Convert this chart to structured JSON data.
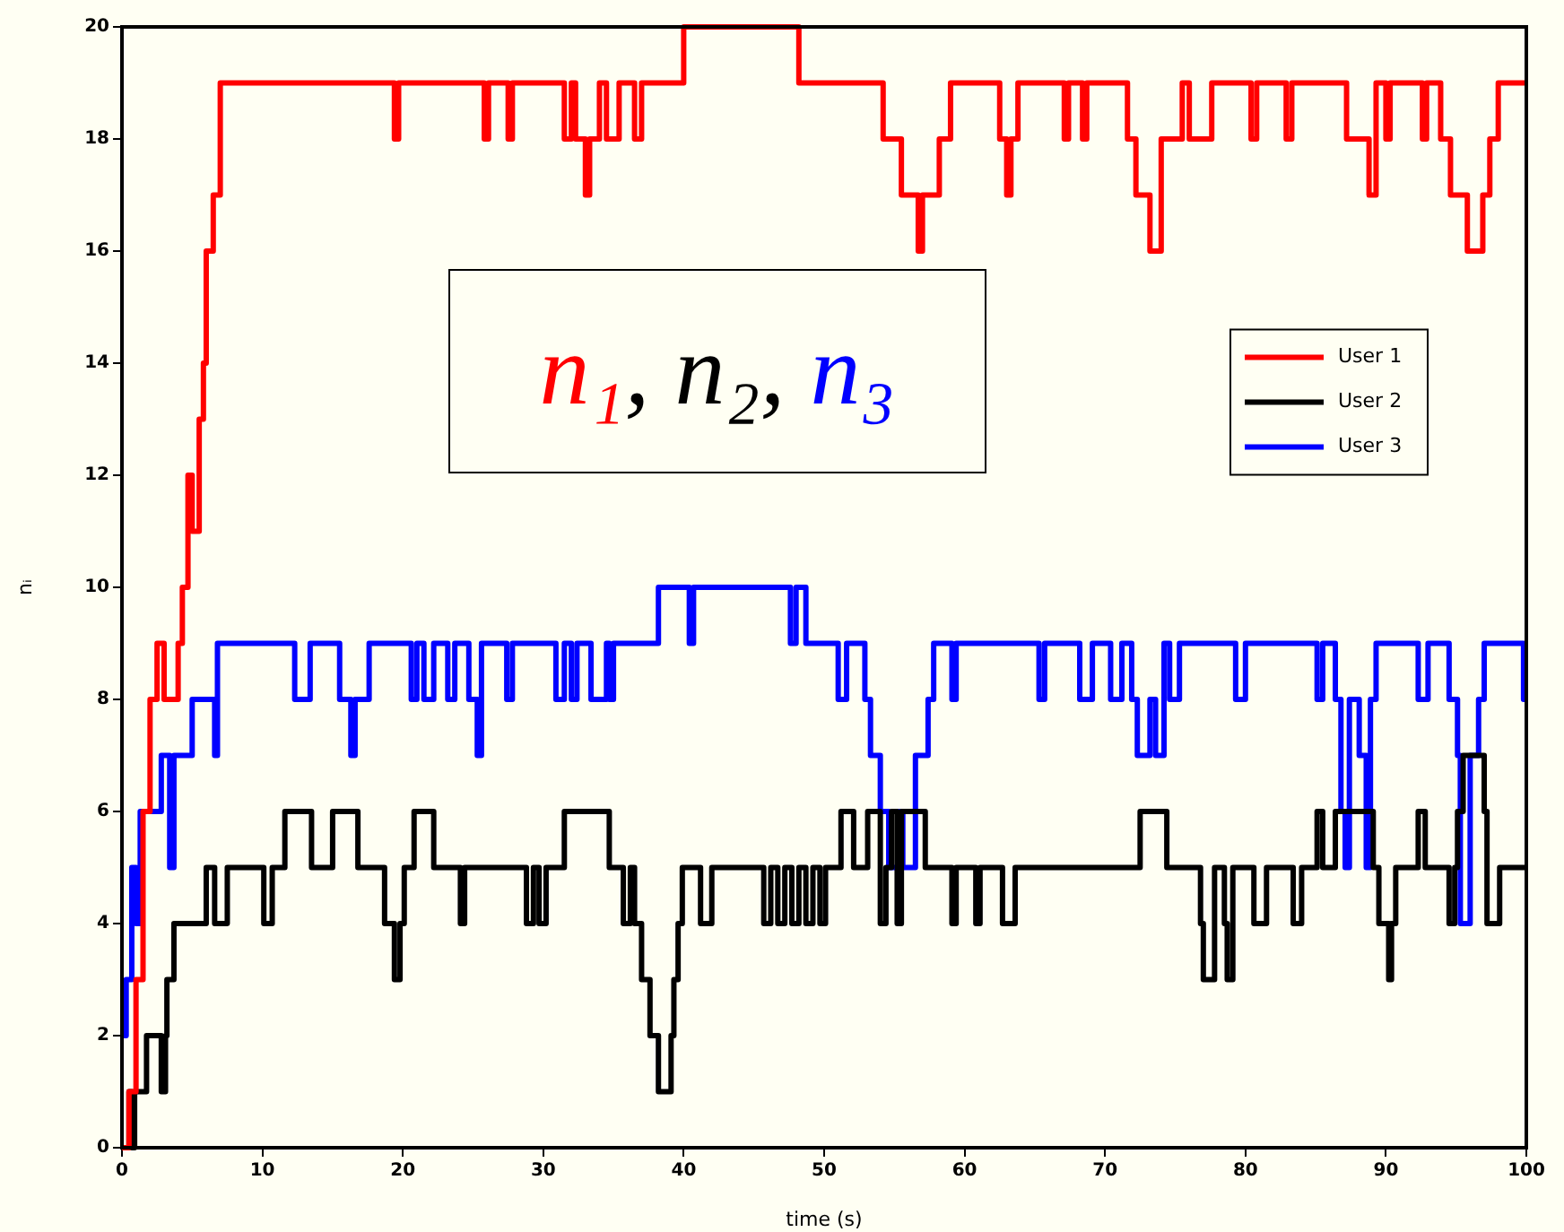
{
  "chart_data": {
    "type": "step",
    "xlabel": "time (s)",
    "ylabel": "nᵢ",
    "xlim": [
      0,
      100
    ],
    "xticks": [
      0,
      10,
      20,
      30,
      40,
      50,
      60,
      70,
      80,
      90,
      100
    ],
    "ylim": [
      0,
      20
    ],
    "yticks": [
      0,
      2,
      4,
      6,
      8,
      10,
      12,
      14,
      16,
      18,
      20
    ],
    "grid": false,
    "legend": "top right",
    "marker": "none",
    "line_style": "solid",
    "annotations": [
      "n₁, n₂, n₃"
    ],
    "series": [
      {
        "name": "User 1",
        "color": "#ff0000",
        "x": [
          0,
          0.5,
          1,
          1.5,
          2,
          2.5,
          3,
          4,
          4.3,
          4.7,
          5,
          5.5,
          5.8,
          6,
          6.5,
          7,
          19.4,
          19.7,
          25.8,
          26.1,
          27.5,
          27.8,
          31.5,
          32,
          32.3,
          33,
          33.3,
          34,
          34.5,
          35.4,
          36.5,
          37,
          40,
          48.2,
          54.2,
          55.5,
          56.7,
          57,
          58.2,
          59,
          62.5,
          63,
          63.3,
          63.8,
          67.1,
          67.4,
          68.4,
          68.7,
          71.6,
          72.2,
          73.2,
          74,
          75.5,
          76,
          77.6,
          80.4,
          80.8,
          82.9,
          83.3,
          87.2,
          88.8,
          89.3,
          90,
          90.3,
          92.6,
          92.9,
          93.9,
          94.6,
          95.8,
          96.9,
          97.4,
          98,
          100
        ],
        "values": [
          0,
          1,
          3,
          6,
          8,
          9,
          8,
          9,
          10,
          12,
          11,
          13,
          14,
          16,
          17,
          19,
          18,
          19,
          18,
          19,
          18,
          19,
          18,
          19,
          18,
          17,
          18,
          19,
          18,
          19,
          18,
          19,
          20,
          19,
          18,
          17,
          16,
          17,
          18,
          19,
          18,
          17,
          18,
          19,
          18,
          19,
          18,
          19,
          18,
          17,
          16,
          18,
          19,
          18,
          19,
          18,
          19,
          18,
          19,
          18,
          17,
          19,
          18,
          19,
          18,
          19,
          18,
          17,
          16,
          17,
          18,
          19,
          19
        ]
      },
      {
        "name": "User 2",
        "color": "#000000",
        "x": [
          0,
          0.5,
          0.7,
          0.9,
          1.75,
          2.8,
          3.1,
          3.2,
          3.7,
          6,
          6.6,
          7.5,
          10.1,
          10.7,
          11.6,
          13.5,
          15,
          16.8,
          18.7,
          19.4,
          19.8,
          20.1,
          20.8,
          22.2,
          24.1,
          24.4,
          28.8,
          29.3,
          29.7,
          30.2,
          31.5,
          34.7,
          35.7,
          36.2,
          36.5,
          37,
          37.6,
          38.2,
          39.1,
          39.3,
          39.6,
          39.9,
          41.2,
          42,
          45.7,
          46.2,
          46.7,
          47.2,
          47.7,
          48.2,
          48.7,
          49.2,
          49.7,
          50.1,
          51.2,
          52.1,
          53.1,
          54,
          54.4,
          54.8,
          55.2,
          55.5,
          57.2,
          59.1,
          59.4,
          60.8,
          61.1,
          62.7,
          63.6,
          72.5,
          74.4,
          76.8,
          77,
          77.8,
          78.5,
          78.7,
          79.1,
          80.6,
          81.5,
          83.4,
          84,
          85.1,
          85.5,
          86.4,
          89.1,
          89.5,
          90.2,
          90.4,
          90.7,
          92.3,
          92.8,
          94.5,
          94.9,
          95.1,
          95.5,
          97,
          97.2,
          98.1,
          100
        ],
        "values": [
          0,
          1,
          0,
          1,
          2,
          1,
          2,
          3,
          4,
          5,
          4,
          5,
          4,
          5,
          6,
          5,
          6,
          5,
          4,
          3,
          4,
          5,
          6,
          5,
          4,
          5,
          4,
          5,
          4,
          5,
          6,
          5,
          4,
          5,
          4,
          3,
          2,
          1,
          2,
          3,
          4,
          5,
          4,
          5,
          4,
          5,
          4,
          5,
          4,
          5,
          4,
          5,
          4,
          5,
          6,
          5,
          6,
          4,
          5,
          6,
          4,
          6,
          5,
          4,
          5,
          4,
          5,
          4,
          5,
          6,
          5,
          4,
          3,
          5,
          4,
          3,
          5,
          4,
          5,
          4,
          5,
          6,
          5,
          6,
          5,
          4,
          3,
          4,
          5,
          6,
          5,
          4,
          5,
          6,
          7,
          6,
          4,
          5,
          5
        ]
      },
      {
        "name": "User 3",
        "color": "#0000ff",
        "x": [
          0,
          0.3,
          0.7,
          1,
          1.3,
          2.8,
          3.4,
          3.7,
          5,
          6.6,
          6.8,
          12.3,
          13.4,
          15.5,
          16.3,
          16.6,
          17.6,
          20.6,
          21,
          21.5,
          22.2,
          23.2,
          23.7,
          24.7,
          25.3,
          25.6,
          27.4,
          27.8,
          30.9,
          31.5,
          32,
          32.4,
          33.4,
          34.5,
          34.7,
          35,
          38.2,
          40.4,
          40.7,
          47.6,
          48,
          48.7,
          51,
          51.6,
          52.9,
          53.3,
          54,
          54.6,
          55.3,
          55.6,
          56.5,
          57.4,
          57.8,
          59.1,
          59.4,
          65.3,
          65.7,
          68.2,
          69.1,
          70.4,
          71.2,
          71.9,
          72.3,
          73.2,
          73.6,
          74.2,
          74.6,
          75.3,
          79.3,
          80,
          85.1,
          85.5,
          86.4,
          86.8,
          87.1,
          87.4,
          88.1,
          88.6,
          88.9,
          89.3,
          92.3,
          93,
          94.5,
          95.1,
          95.3,
          96,
          96.6,
          97,
          99.8,
          100
        ],
        "values": [
          2,
          3,
          5,
          4,
          6,
          7,
          5,
          7,
          8,
          7,
          9,
          8,
          9,
          8,
          7,
          8,
          9,
          8,
          9,
          8,
          9,
          8,
          9,
          8,
          7,
          9,
          8,
          9,
          8,
          9,
          8,
          9,
          8,
          9,
          8,
          9,
          10,
          9,
          10,
          9,
          10,
          9,
          8,
          9,
          8,
          7,
          6,
          5,
          6,
          5,
          7,
          8,
          9,
          8,
          9,
          8,
          9,
          8,
          9,
          8,
          9,
          8,
          7,
          8,
          7,
          9,
          8,
          9,
          8,
          9,
          8,
          9,
          8,
          6,
          5,
          8,
          7,
          5,
          8,
          9,
          8,
          9,
          8,
          7,
          4,
          7,
          8,
          9,
          8,
          8
        ]
      }
    ]
  }
}
